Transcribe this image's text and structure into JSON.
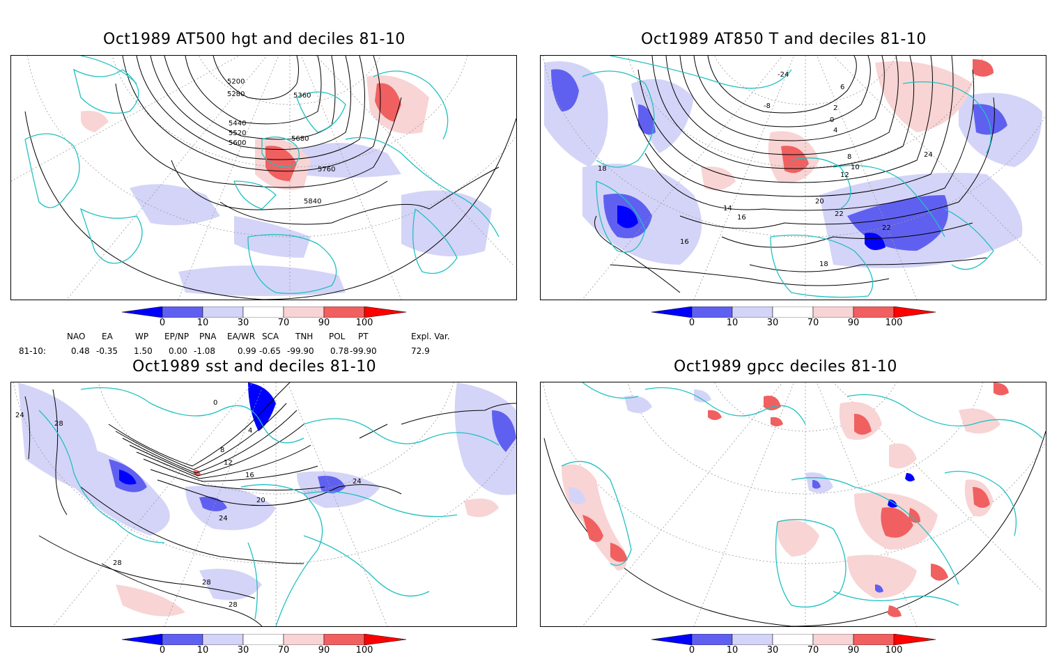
{
  "panels": [
    {
      "id": "hgt500",
      "title": "Oct1989 AT500 hgt and deciles 81-10",
      "contour_labels": [
        "5200",
        "5280",
        "5360",
        "5440",
        "5520",
        "5600",
        "5680",
        "5760",
        "5840"
      ]
    },
    {
      "id": "t850",
      "title": "Oct1989 AT850 T and deciles 81-10",
      "contour_labels": [
        "-24",
        "-8",
        "0",
        "2",
        "4",
        "6",
        "8",
        "10",
        "12",
        "14",
        "16",
        "18",
        "20",
        "22",
        "24",
        "16",
        "18",
        "22"
      ]
    },
    {
      "id": "sst",
      "title": "Oct1989 sst and deciles 81-10",
      "contour_labels": [
        "0",
        "4",
        "8",
        "12",
        "16",
        "20",
        "24",
        "28",
        "28",
        "28",
        "28",
        "24",
        "24"
      ]
    },
    {
      "id": "gpcc",
      "title": "Oct1989 gpcc deciles 81-10",
      "contour_labels": []
    }
  ],
  "colorbar": {
    "labels": [
      "0",
      "10",
      "30",
      "70",
      "90",
      "100"
    ],
    "colors": {
      "dark_blue": "#0000ff",
      "mid_blue": "#6060f0",
      "light_blue": "#d4d4f8",
      "white": "#ffffff",
      "light_red": "#f8d4d4",
      "mid_red": "#f06060",
      "dark_red": "#ff0000"
    }
  },
  "indices": {
    "headers": [
      "NAO",
      "EA",
      "WP",
      "EP/NP",
      "PNA",
      "EA/WR",
      "SCA",
      "TNH",
      "POL",
      "PT",
      "Expl. Var."
    ],
    "row_label": "81-10:",
    "values": [
      "0.48",
      "-0.35",
      "1.50",
      "0.00",
      "-1.08",
      "0.99",
      "-0.65",
      "-99.90",
      "0.78",
      "-99.90",
      "72.9"
    ]
  },
  "colors": {
    "coast": "#20c0c0",
    "contour": "#000000",
    "grid": "#999999"
  }
}
